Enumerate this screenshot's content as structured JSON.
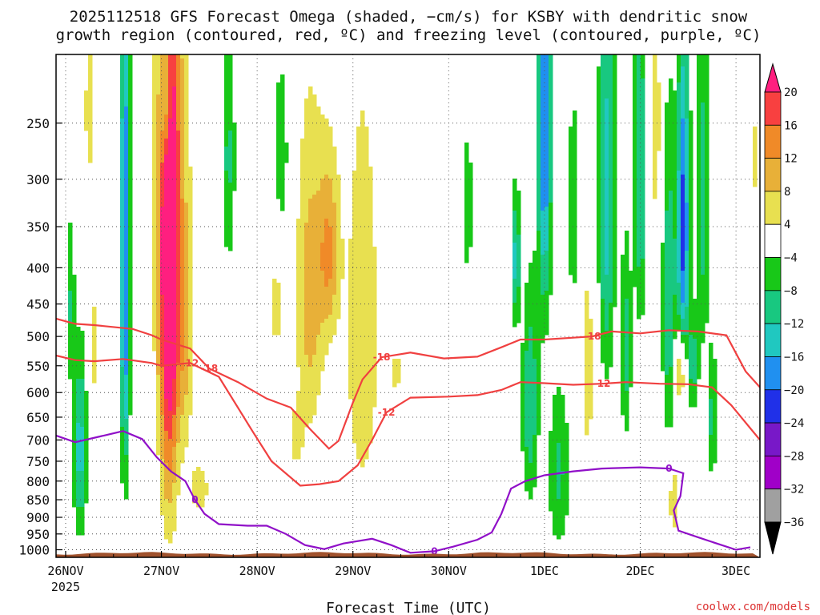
{
  "title_line1": "2025112518 GFS Forecast Omega (shaded, −cm/s) for KSBY with dendritic snow",
  "title_line2": "growth region (contoured, red, ºC) and freezing level (contoured, purple, ºC)",
  "credit": "coolwx.com/models",
  "chart_data": {
    "type": "heatmap",
    "xlabel": "Forecast Time (UTC)",
    "x_ticks": [
      {
        "label": "26NOV",
        "sublabel": "2025",
        "day": 0
      },
      {
        "label": "27NOV",
        "day": 1
      },
      {
        "label": "28NOV",
        "day": 2
      },
      {
        "label": "29NOV",
        "day": 3
      },
      {
        "label": "30NOV",
        "day": 4
      },
      {
        "label": "1DEC",
        "day": 5
      },
      {
        "label": "2DEC",
        "day": 6
      },
      {
        "label": "3DEC",
        "day": 7
      }
    ],
    "xlim_days": [
      -0.1,
      7.25
    ],
    "y_ticks": [
      250,
      300,
      350,
      400,
      450,
      500,
      550,
      600,
      650,
      700,
      750,
      800,
      850,
      900,
      950,
      1000
    ],
    "ylim_hpa": [
      200,
      1025
    ],
    "y_scale": "log-pressure, inverted",
    "grid": "dotted",
    "colorbar": {
      "placement": "right",
      "labels": [
        "20",
        "16",
        "12",
        "8",
        "4",
        "−4",
        "−8",
        "−12",
        "−16",
        "−20",
        "−24",
        "−28",
        "−32",
        "−36"
      ],
      "colors": [
        "#ff1f7f",
        "#f84040",
        "#f08a28",
        "#e8b038",
        "#e8e050",
        "#ffffff",
        "#18c818",
        "#18c880",
        "#20c8c0",
        "#2090f0",
        "#2030e8",
        "#7818c8",
        "#a000c8",
        "#a0a0a0",
        "#000000"
      ]
    },
    "contours": [
      {
        "name": "-18",
        "label": "-18",
        "color": "#f04040",
        "points": [
          [
            -0.1,
            472
          ],
          [
            0.1,
            480
          ],
          [
            0.3,
            482
          ],
          [
            0.7,
            488
          ],
          [
            0.9,
            498
          ],
          [
            1.0,
            505
          ],
          [
            1.3,
            520
          ],
          [
            1.5,
            555
          ],
          [
            1.8,
            580
          ],
          [
            2.1,
            612
          ],
          [
            2.35,
            630
          ],
          [
            2.55,
            675
          ],
          [
            2.75,
            720
          ],
          [
            2.85,
            702
          ],
          [
            3.0,
            620
          ],
          [
            3.1,
            575
          ],
          [
            3.3,
            535
          ],
          [
            3.6,
            527
          ],
          [
            3.95,
            537
          ],
          [
            4.3,
            534
          ],
          [
            4.55,
            518
          ],
          [
            4.75,
            505
          ],
          [
            5.0,
            505
          ],
          [
            5.3,
            502
          ],
          [
            5.5,
            500
          ],
          [
            5.7,
            492
          ],
          [
            6.0,
            495
          ],
          [
            6.3,
            490
          ],
          [
            6.6,
            492
          ],
          [
            6.9,
            498
          ],
          [
            7.1,
            560
          ],
          [
            7.25,
            590
          ]
        ]
      },
      {
        "name": "-12",
        "label": "-12",
        "color": "#f04040",
        "points": [
          [
            -0.1,
            532
          ],
          [
            0.1,
            540
          ],
          [
            0.3,
            542
          ],
          [
            0.6,
            538
          ],
          [
            0.9,
            545
          ],
          [
            1.0,
            550
          ],
          [
            1.3,
            545
          ],
          [
            1.6,
            570
          ],
          [
            1.95,
            680
          ],
          [
            2.15,
            750
          ],
          [
            2.45,
            812
          ],
          [
            2.65,
            808
          ],
          [
            2.85,
            800
          ],
          [
            3.05,
            760
          ],
          [
            3.2,
            700
          ],
          [
            3.35,
            640
          ],
          [
            3.6,
            610
          ],
          [
            4.0,
            608
          ],
          [
            4.3,
            605
          ],
          [
            4.55,
            595
          ],
          [
            4.75,
            580
          ],
          [
            5.0,
            582
          ],
          [
            5.3,
            585
          ],
          [
            5.6,
            583
          ],
          [
            5.85,
            580
          ],
          [
            6.2,
            583
          ],
          [
            6.5,
            584
          ],
          [
            6.75,
            590
          ],
          [
            6.95,
            625
          ],
          [
            7.25,
            700
          ]
        ]
      },
      {
        "name": "0",
        "label": "0",
        "color": "#9010c8",
        "points": [
          [
            -0.1,
            690
          ],
          [
            0.1,
            705
          ],
          [
            0.4,
            690
          ],
          [
            0.6,
            680
          ],
          [
            0.8,
            698
          ],
          [
            0.95,
            740
          ],
          [
            1.1,
            775
          ],
          [
            1.25,
            800
          ],
          [
            1.35,
            850
          ],
          [
            1.45,
            890
          ],
          [
            1.6,
            920
          ],
          [
            1.9,
            925
          ],
          [
            2.1,
            925
          ],
          [
            2.3,
            950
          ],
          [
            2.5,
            985
          ],
          [
            2.7,
            998
          ],
          [
            2.9,
            980
          ],
          [
            3.2,
            965
          ],
          [
            3.4,
            985
          ],
          [
            3.6,
            1010
          ],
          [
            3.85,
            1005
          ],
          [
            4.05,
            990
          ],
          [
            4.3,
            968
          ],
          [
            4.45,
            945
          ],
          [
            4.55,
            890
          ],
          [
            4.65,
            820
          ],
          [
            4.8,
            800
          ],
          [
            5.0,
            785
          ],
          [
            5.3,
            775
          ],
          [
            5.6,
            768
          ],
          [
            6.0,
            765
          ],
          [
            6.3,
            768
          ],
          [
            6.45,
            780
          ],
          [
            6.42,
            840
          ],
          [
            6.35,
            880
          ],
          [
            6.4,
            940
          ],
          [
            6.6,
            960
          ],
          [
            6.85,
            985
          ],
          [
            7.0,
            1000
          ],
          [
            7.15,
            992
          ]
        ]
      }
    ],
    "blobs": [
      {
        "day": 1.08,
        "p": 430,
        "sx": 0.07,
        "sy": 300,
        "v": 22
      },
      {
        "day": 1.1,
        "p": 340,
        "sx": 0.12,
        "sy": 180,
        "v": 11
      },
      {
        "day": 1.25,
        "p": 520,
        "sx": 0.06,
        "sy": 140,
        "v": 7
      },
      {
        "day": 1.4,
        "p": 820,
        "sx": 0.08,
        "sy": 60,
        "v": 6
      },
      {
        "day": 0.25,
        "p": 240,
        "sx": 0.06,
        "sy": 60,
        "v": 5
      },
      {
        "day": 0.3,
        "p": 520,
        "sx": 0.04,
        "sy": 100,
        "v": 5
      },
      {
        "day": 2.55,
        "p": 440,
        "sx": 0.1,
        "sy": 160,
        "v": 10
      },
      {
        "day": 2.75,
        "p": 380,
        "sx": 0.08,
        "sy": 80,
        "v": 12
      },
      {
        "day": 3.1,
        "p": 500,
        "sx": 0.12,
        "sy": 220,
        "v": 8
      },
      {
        "day": 2.2,
        "p": 450,
        "sx": 0.06,
        "sy": 80,
        "v": 5
      },
      {
        "day": 2.4,
        "p": 700,
        "sx": 0.06,
        "sy": 60,
        "v": 5
      },
      {
        "day": 3.45,
        "p": 560,
        "sx": 0.05,
        "sy": 40,
        "v": 5
      },
      {
        "day": 0.62,
        "p": 400,
        "sx": 0.035,
        "sy": 250,
        "v": -21
      },
      {
        "day": 0.15,
        "p": 720,
        "sx": 0.05,
        "sy": 150,
        "v": -14
      },
      {
        "day": 0.05,
        "p": 450,
        "sx": 0.03,
        "sy": 90,
        "v": -8
      },
      {
        "day": 1.05,
        "p": 230,
        "sx": 0.04,
        "sy": 40,
        "v": -14
      },
      {
        "day": 1.7,
        "p": 280,
        "sx": 0.05,
        "sy": 80,
        "v": -9
      },
      {
        "day": 2.25,
        "p": 280,
        "sx": 0.05,
        "sy": 60,
        "v": -8
      },
      {
        "day": 4.2,
        "p": 330,
        "sx": 0.03,
        "sy": 60,
        "v": -8
      },
      {
        "day": 4.85,
        "p": 620,
        "sx": 0.06,
        "sy": 150,
        "v": -12
      },
      {
        "day": 4.7,
        "p": 390,
        "sx": 0.03,
        "sy": 60,
        "v": -14
      },
      {
        "day": 5.0,
        "p": 260,
        "sx": 0.05,
        "sy": 130,
        "v": -20
      },
      {
        "day": 5.15,
        "p": 780,
        "sx": 0.08,
        "sy": 150,
        "v": -9
      },
      {
        "day": 5.3,
        "p": 330,
        "sx": 0.04,
        "sy": 80,
        "v": -8
      },
      {
        "day": 5.45,
        "p": 560,
        "sx": 0.05,
        "sy": 150,
        "v": 6
      },
      {
        "day": 5.65,
        "p": 320,
        "sx": 0.06,
        "sy": 160,
        "v": -14
      },
      {
        "day": 5.85,
        "p": 520,
        "sx": 0.04,
        "sy": 120,
        "v": -10
      },
      {
        "day": 6.0,
        "p": 300,
        "sx": 0.05,
        "sy": 120,
        "v": -12
      },
      {
        "day": 6.15,
        "p": 250,
        "sx": 0.05,
        "sy": 70,
        "v": 7
      },
      {
        "day": 6.3,
        "p": 450,
        "sx": 0.05,
        "sy": 160,
        "v": -12
      },
      {
        "day": 6.45,
        "p": 350,
        "sx": 0.045,
        "sy": 130,
        "v": -22
      },
      {
        "day": 6.42,
        "p": 560,
        "sx": 0.05,
        "sy": 50,
        "v": 11
      },
      {
        "day": 6.65,
        "p": 320,
        "sx": 0.05,
        "sy": 130,
        "v": -10
      },
      {
        "day": 6.35,
        "p": 850,
        "sx": 0.04,
        "sy": 80,
        "v": 7
      },
      {
        "day": 6.55,
        "p": 550,
        "sx": 0.04,
        "sy": 60,
        "v": -10
      },
      {
        "day": 6.75,
        "p": 650,
        "sx": 0.04,
        "sy": 100,
        "v": -9
      },
      {
        "day": 7.2,
        "p": 280,
        "sx": 0.03,
        "sy": 30,
        "v": 6
      }
    ]
  }
}
